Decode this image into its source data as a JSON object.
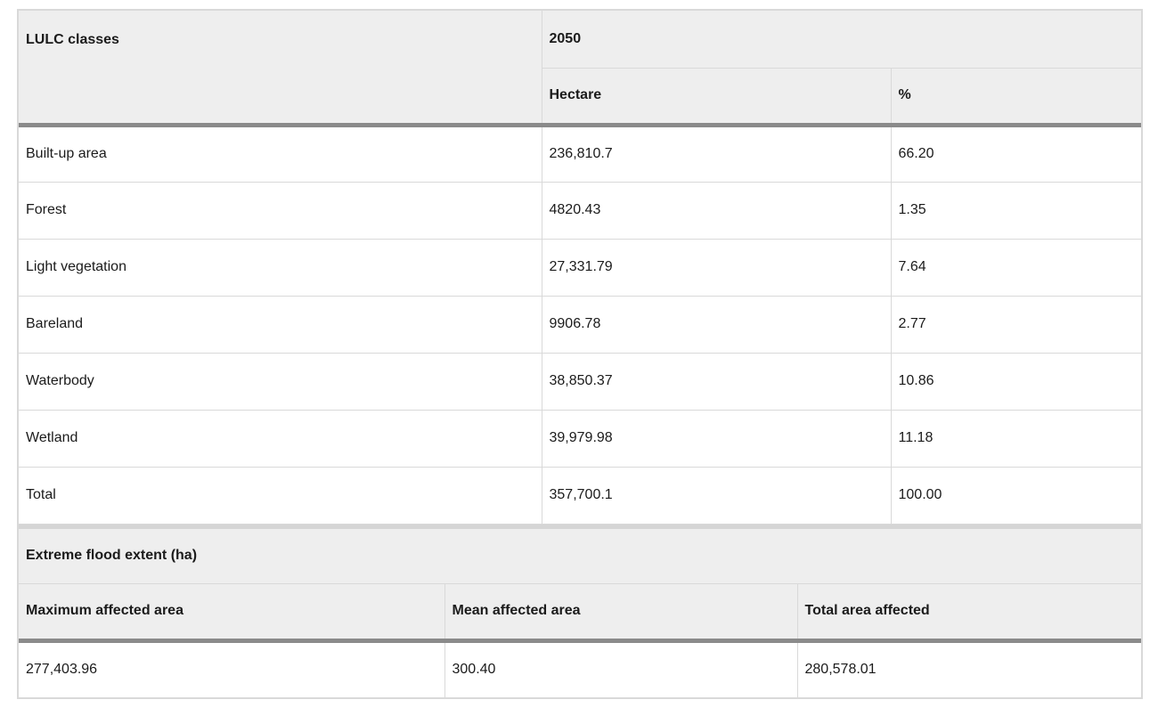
{
  "table1": {
    "header": {
      "class_col": "LULC classes",
      "year": "2050",
      "hectare": "Hectare",
      "percent": "%"
    },
    "rows": [
      {
        "label": "Built-up area",
        "hectare": "236,810.7",
        "percent": "66.20"
      },
      {
        "label": "Forest",
        "hectare": "4820.43",
        "percent": "1.35"
      },
      {
        "label": "Light vegetation",
        "hectare": "27,331.79",
        "percent": "7.64"
      },
      {
        "label": "Bareland",
        "hectare": "9906.78",
        "percent": "2.77"
      },
      {
        "label": "Waterbody",
        "hectare": "38,850.37",
        "percent": "10.86"
      },
      {
        "label": "Wetland",
        "hectare": "39,979.98",
        "percent": "11.18"
      },
      {
        "label": "Total",
        "hectare": "357,700.1",
        "percent": "100.00"
      }
    ]
  },
  "table2": {
    "title": "Extreme flood extent (ha)",
    "columns": [
      "Maximum affected area",
      "Mean affected area",
      "Total area affected"
    ],
    "values": [
      "277,403.96",
      "300.40",
      "280,578.01"
    ]
  }
}
